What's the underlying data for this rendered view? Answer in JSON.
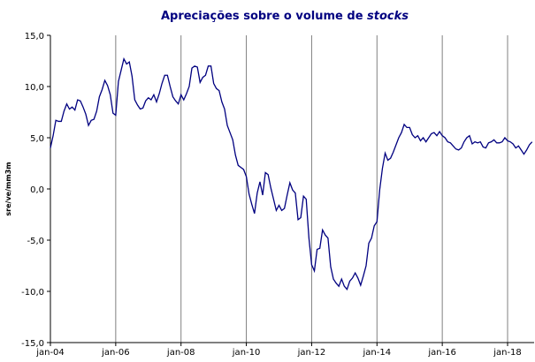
{
  "chart_data": {
    "type": "line",
    "title": "Apreciações sobre o volume de",
    "title_emphasis": "stocks",
    "y_label": "sre/ve/mm3m",
    "color": "#000080",
    "grid": "x",
    "ylim": [
      -15,
      15
    ],
    "yticks": [
      {
        "value": -15,
        "label": "-15,0"
      },
      {
        "value": -10,
        "label": "-10,0"
      },
      {
        "value": -5,
        "label": "-5,0"
      },
      {
        "value": 0,
        "label": "0,0"
      },
      {
        "value": 5,
        "label": "5,0"
      },
      {
        "value": 10,
        "label": "10,0"
      },
      {
        "value": 15,
        "label": "15,0"
      }
    ],
    "categories": [
      "jan-04",
      null,
      null,
      null,
      null,
      null,
      null,
      null,
      null,
      null,
      null,
      null,
      null,
      null,
      null,
      null,
      null,
      null,
      null,
      null,
      null,
      null,
      null,
      null,
      "jan-06",
      null,
      null,
      null,
      null,
      null,
      null,
      null,
      null,
      null,
      null,
      null,
      null,
      null,
      null,
      null,
      null,
      null,
      null,
      null,
      null,
      null,
      null,
      null,
      "jan-08",
      null,
      null,
      null,
      null,
      null,
      null,
      null,
      null,
      null,
      null,
      null,
      null,
      null,
      null,
      null,
      null,
      null,
      null,
      null,
      null,
      null,
      null,
      null,
      "jan-10",
      null,
      null,
      null,
      null,
      null,
      null,
      null,
      null,
      null,
      null,
      null,
      null,
      null,
      null,
      null,
      null,
      null,
      null,
      null,
      null,
      null,
      null,
      null,
      "jan-12",
      null,
      null,
      null,
      null,
      null,
      null,
      null,
      null,
      null,
      null,
      null,
      null,
      null,
      null,
      null,
      null,
      null,
      null,
      null,
      null,
      null,
      null,
      null,
      "jan-14",
      null,
      null,
      null,
      null,
      null,
      null,
      null,
      null,
      null,
      null,
      null,
      null,
      null,
      null,
      null,
      null,
      null,
      null,
      null,
      null,
      null,
      null,
      null,
      "jan-16",
      null,
      null,
      null,
      null,
      null,
      null,
      null,
      null,
      null,
      null,
      null,
      null,
      null,
      null,
      null,
      null,
      null,
      null,
      null,
      null,
      null,
      null,
      null,
      "jan-18",
      null,
      null,
      null,
      null,
      null,
      null,
      null,
      null,
      null
    ],
    "values": [
      4.0,
      5.2,
      6.7,
      6.6,
      6.6,
      7.6,
      8.3,
      7.8,
      8.0,
      7.7,
      8.7,
      8.6,
      8.0,
      7.3,
      6.2,
      6.7,
      6.8,
      7.6,
      9.0,
      9.7,
      10.6,
      10.1,
      9.2,
      7.4,
      7.2,
      10.5,
      11.6,
      12.7,
      12.2,
      12.4,
      11.0,
      8.7,
      8.2,
      7.8,
      7.9,
      8.6,
      8.9,
      8.7,
      9.2,
      8.5,
      9.3,
      10.3,
      11.1,
      11.1,
      10.0,
      9.0,
      8.6,
      8.3,
      9.2,
      8.7,
      9.3,
      10.0,
      11.8,
      12.0,
      11.9,
      10.4,
      10.9,
      11.1,
      12.0,
      12.0,
      10.3,
      9.8,
      9.6,
      8.5,
      7.8,
      6.2,
      5.5,
      4.8,
      3.3,
      2.3,
      2.1,
      1.9,
      1.2,
      -0.5,
      -1.5,
      -2.4,
      -0.4,
      0.7,
      -0.6,
      1.6,
      1.4,
      0.1,
      -1.0,
      -2.1,
      -1.6,
      -2.1,
      -1.9,
      -0.6,
      0.6,
      -0.1,
      -0.4,
      -3.0,
      -2.8,
      -0.7,
      -1.0,
      -4.8,
      -7.4,
      -8.0,
      -5.9,
      -5.8,
      -4.0,
      -4.5,
      -4.8,
      -7.6,
      -8.8,
      -9.2,
      -9.5,
      -8.8,
      -9.5,
      -9.8,
      -9.0,
      -8.7,
      -8.2,
      -8.7,
      -9.4,
      -8.5,
      -7.5,
      -5.3,
      -4.8,
      -3.6,
      -3.2,
      -0.1,
      2.0,
      3.5,
      2.8,
      3.0,
      3.6,
      4.3,
      5.0,
      5.5,
      6.3,
      6.0,
      6.0,
      5.3,
      5.0,
      5.2,
      4.7,
      5.0,
      4.6,
      5.0,
      5.4,
      5.5,
      5.2,
      5.6,
      5.2,
      5.0,
      4.6,
      4.5,
      4.2,
      3.9,
      3.8,
      4.0,
      4.6,
      5.0,
      5.2,
      4.4,
      4.6,
      4.5,
      4.6,
      4.1,
      4.0,
      4.5,
      4.6,
      4.8,
      4.5,
      4.5,
      4.6,
      5.0,
      4.7,
      4.6,
      4.4,
      4.0,
      4.2,
      3.8,
      3.4,
      3.8,
      4.3,
      4.6
    ]
  }
}
